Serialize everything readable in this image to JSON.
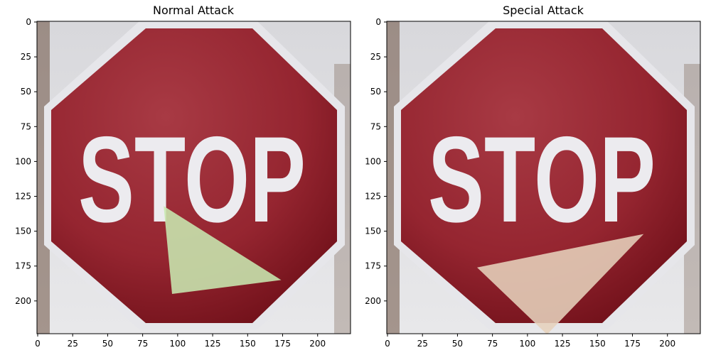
{
  "figure": {
    "panels": [
      {
        "title": "Normal Attack",
        "sign_text": "STOP",
        "x_ticks": [
          "0",
          "25",
          "50",
          "75",
          "100",
          "125",
          "150",
          "175",
          "200"
        ],
        "y_ticks": [
          "0",
          "25",
          "50",
          "75",
          "100",
          "125",
          "150",
          "175",
          "200"
        ],
        "patch": {
          "color": "#c8e8b0",
          "points": [
            [
              90,
              132
            ],
            [
              96,
              195
            ],
            [
              174,
              185
            ]
          ]
        }
      },
      {
        "title": "Special Attack",
        "sign_text": "STOP",
        "x_ticks": [
          "0",
          "25",
          "50",
          "75",
          "100",
          "125",
          "150",
          "175",
          "200"
        ],
        "y_ticks": [
          "0",
          "25",
          "50",
          "75",
          "100",
          "125",
          "150",
          "175",
          "200"
        ],
        "patch": {
          "color": "#e6d2bc",
          "points": [
            [
              64,
              176
            ],
            [
              183,
              152
            ],
            [
              114,
              224
            ]
          ]
        }
      }
    ],
    "image_extent": {
      "x": [
        0,
        224
      ],
      "y": [
        0,
        224
      ]
    },
    "colors": {
      "sign_red": "#9c2a33",
      "sign_border": "#e6e6ea",
      "letters": "#ecebef",
      "background": "#d9d9dc"
    }
  }
}
